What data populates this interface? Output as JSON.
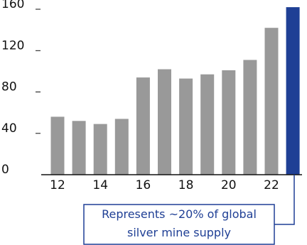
{
  "chart_data": {
    "type": "bar",
    "title": "",
    "xlabel": "",
    "ylabel": "",
    "categories": [
      "12",
      "13",
      "14",
      "15",
      "16",
      "17",
      "18",
      "19",
      "20",
      "21",
      "22",
      "23"
    ],
    "values": [
      56,
      52,
      49,
      54,
      94,
      102,
      93,
      97,
      101,
      111,
      142,
      162
    ],
    "x_tick_labels": [
      "12",
      "14",
      "16",
      "18",
      "20",
      "22"
    ],
    "y_tick_labels": [
      "0",
      "40",
      "80",
      "120",
      "160"
    ],
    "ylim": [
      0,
      160
    ],
    "grid": false,
    "colors": {
      "bar": "#999999",
      "highlight_bar": "#1f3f95",
      "axis": "#111111",
      "callout": "#1f3f95"
    },
    "highlight_index": 11,
    "annotation": {
      "line1": "Represents ~20% of global",
      "line2": "silver mine supply"
    }
  }
}
